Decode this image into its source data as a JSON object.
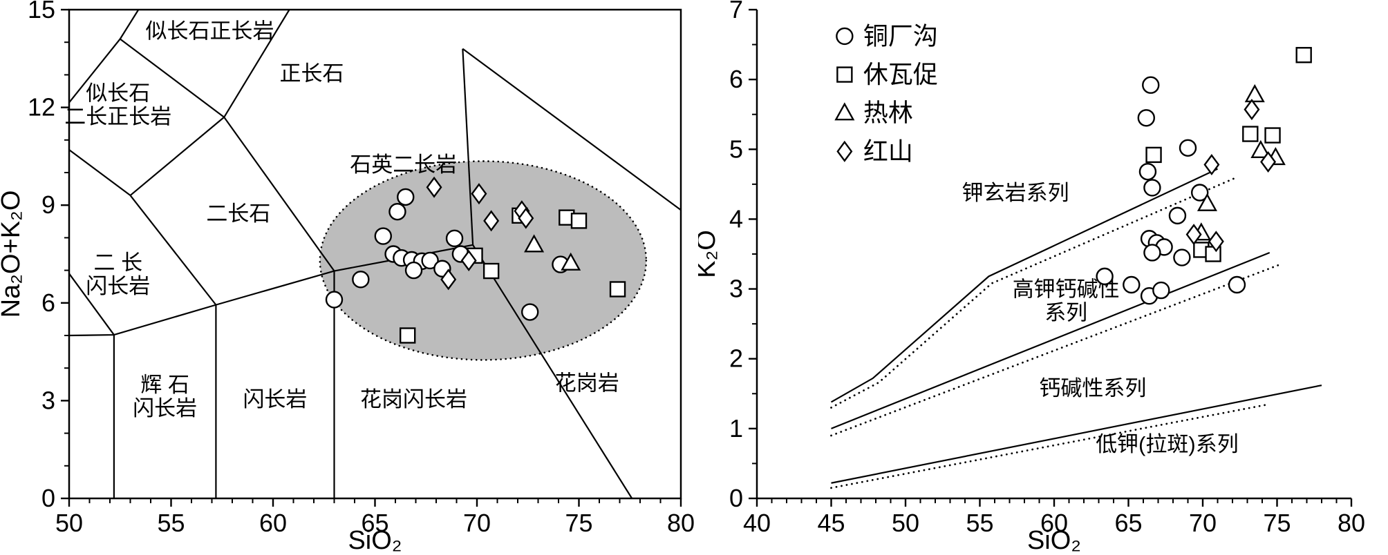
{
  "figure": {
    "background": "#ffffff",
    "ink": "#000000",
    "ellipse_fill": "#bcbcbc"
  },
  "chart_data": [
    {
      "id": "tas",
      "type": "scatter",
      "title": "",
      "xlabel": "SiO₂",
      "ylabel": "Na₂O+K₂O",
      "xlim": [
        50,
        80
      ],
      "ylim": [
        0,
        15
      ],
      "xticks": [
        50,
        55,
        60,
        65,
        70,
        75,
        80
      ],
      "yticks": [
        0,
        3,
        6,
        9,
        12,
        15
      ],
      "xminor": 1,
      "yminor": 1,
      "grid": false,
      "frame": "box",
      "ellipse": {
        "cx": 70.3,
        "cy": 7.3,
        "rx": 8.0,
        "ry": 3.05,
        "fill": "#bcbcbc"
      },
      "boundaries": [
        [
          [
            52.2,
            0
          ],
          [
            52.2,
            5.02
          ]
        ],
        [
          [
            57.2,
            0
          ],
          [
            57.2,
            5.94
          ]
        ],
        [
          [
            63,
            0
          ],
          [
            63,
            6.98
          ]
        ],
        [
          [
            50,
            5.0
          ],
          [
            52.2,
            5.02
          ],
          [
            57.2,
            5.94
          ],
          [
            63,
            6.98
          ],
          [
            69.8,
            7.78
          ]
        ],
        [
          [
            69.8,
            7.78
          ],
          [
            77.6,
            0
          ]
        ],
        [
          [
            69.8,
            7.78
          ],
          [
            69.3,
            13.8
          ]
        ],
        [
          [
            69.3,
            13.8
          ],
          [
            80,
            8.85
          ]
        ],
        [
          [
            63,
            6.98
          ],
          [
            57.6,
            11.7
          ]
        ],
        [
          [
            57.6,
            11.7
          ],
          [
            52.5,
            14.1
          ]
        ],
        [
          [
            50,
            12.15
          ],
          [
            52.5,
            14.1
          ],
          [
            53.4,
            15
          ]
        ],
        [
          [
            57.6,
            11.7
          ],
          [
            60.8,
            15
          ]
        ],
        [
          [
            50,
            10.7
          ],
          [
            53,
            9.3
          ]
        ],
        [
          [
            53,
            9.3
          ],
          [
            57.6,
            11.7
          ]
        ],
        [
          [
            53,
            9.3
          ],
          [
            57.2,
            5.94
          ]
        ],
        [
          [
            50,
            6.9
          ],
          [
            52.2,
            5.02
          ]
        ]
      ],
      "labels": [
        {
          "lines": [
            "似长石正长岩"
          ],
          "x": 56.9,
          "y": 14.35
        },
        {
          "lines": [
            "正长石"
          ],
          "x": 61.9,
          "y": 13.05
        },
        {
          "lines": [
            "似长石",
            "二长正长岩"
          ],
          "x": 52.4,
          "y": 12.45
        },
        {
          "lines": [
            "二长石"
          ],
          "x": 58.3,
          "y": 8.75
        },
        {
          "lines": [
            "石英二长岩"
          ],
          "x": 66.4,
          "y": 10.25
        },
        {
          "lines": [
            "二  长",
            "闪长岩"
          ],
          "x": 52.4,
          "y": 7.25
        },
        {
          "lines": [
            "辉 石",
            "闪长岩"
          ],
          "x": 54.7,
          "y": 3.5
        },
        {
          "lines": [
            "闪长岩"
          ],
          "x": 60.1,
          "y": 3.05
        },
        {
          "lines": [
            "花岗闪长岩"
          ],
          "x": 66.9,
          "y": 3.05
        },
        {
          "lines": [
            "花岗岩"
          ],
          "x": 75.4,
          "y": 3.55
        }
      ],
      "series": [
        {
          "name": "铜厂沟",
          "marker": "circle",
          "points": [
            [
              63.0,
              6.1
            ],
            [
              64.3,
              6.72
            ],
            [
              65.4,
              8.05
            ],
            [
              66.1,
              8.8
            ],
            [
              66.5,
              9.25
            ],
            [
              65.9,
              7.5
            ],
            [
              66.3,
              7.38
            ],
            [
              66.8,
              7.32
            ],
            [
              67.3,
              7.28
            ],
            [
              66.9,
              7.0
            ],
            [
              67.7,
              7.3
            ],
            [
              68.3,
              7.05
            ],
            [
              68.9,
              7.98
            ],
            [
              69.2,
              7.5
            ],
            [
              72.6,
              5.72
            ],
            [
              74.1,
              7.18
            ]
          ]
        },
        {
          "name": "休瓦促",
          "marker": "square",
          "points": [
            [
              66.6,
              5.0
            ],
            [
              69.9,
              7.45
            ],
            [
              70.7,
              6.98
            ],
            [
              72.1,
              8.68
            ],
            [
              74.4,
              8.62
            ],
            [
              75.0,
              8.52
            ],
            [
              76.9,
              6.42
            ]
          ]
        },
        {
          "name": "热林",
          "marker": "triangle",
          "points": [
            [
              72.8,
              7.78
            ],
            [
              74.6,
              7.22
            ]
          ]
        },
        {
          "name": "红山",
          "marker": "diamond",
          "points": [
            [
              67.9,
              9.55
            ],
            [
              70.1,
              9.35
            ],
            [
              70.7,
              8.52
            ],
            [
              68.6,
              6.72
            ],
            [
              69.6,
              7.3
            ],
            [
              72.2,
              8.82
            ],
            [
              72.4,
              8.6
            ]
          ]
        }
      ]
    },
    {
      "id": "k2o",
      "type": "scatter",
      "title": "",
      "xlabel": "SiO₂",
      "ylabel": "K₂O",
      "xlim": [
        40,
        80
      ],
      "ylim": [
        0,
        7
      ],
      "xticks": [
        40,
        45,
        50,
        55,
        60,
        65,
        70,
        75,
        80
      ],
      "yticks": [
        0,
        1,
        2,
        3,
        4,
        5,
        6,
        7
      ],
      "xminor": 1,
      "yminor": 0.5,
      "grid": false,
      "frame": "axes",
      "lines": [
        {
          "style": "solid",
          "pts": [
            [
              45,
              1.38
            ],
            [
              47.8,
              1.72
            ],
            [
              55.6,
              3.18
            ],
            [
              71,
              4.72
            ]
          ]
        },
        {
          "style": "dashed",
          "pts": [
            [
              45,
              1.3
            ],
            [
              48.2,
              1.66
            ],
            [
              55.8,
              3.08
            ],
            [
              72.3,
              4.6
            ]
          ]
        },
        {
          "style": "solid",
          "pts": [
            [
              45,
              1.0
            ],
            [
              74.5,
              3.52
            ]
          ]
        },
        {
          "style": "dashed",
          "pts": [
            [
              45,
              0.9
            ],
            [
              75.2,
              3.35
            ]
          ]
        },
        {
          "style": "solid",
          "pts": [
            [
              45,
              0.22
            ],
            [
              78,
              1.62
            ]
          ]
        },
        {
          "style": "dashed",
          "pts": [
            [
              45,
              0.15
            ],
            [
              74.5,
              1.35
            ]
          ]
        }
      ],
      "labels": [
        {
          "lines": [
            "钾玄岩系列"
          ],
          "x": 57.4,
          "y": 4.38
        },
        {
          "lines": [
            "高钾钙碱性",
            "系列"
          ],
          "x": 60.8,
          "y": 3.0
        },
        {
          "lines": [
            "钙碱性系列"
          ],
          "x": 62.6,
          "y": 1.58
        },
        {
          "lines": [
            "低钾(拉斑)系列"
          ],
          "x": 67.6,
          "y": 0.78
        }
      ],
      "legend": {
        "x": 45.9,
        "y": 6.62,
        "row": 0.55,
        "items": [
          {
            "marker": "circle",
            "label": "铜厂沟"
          },
          {
            "marker": "square",
            "label": "休瓦促"
          },
          {
            "marker": "triangle",
            "label": "热林"
          },
          {
            "marker": "diamond",
            "label": "红山"
          }
        ]
      },
      "series": [
        {
          "name": "铜厂沟",
          "marker": "circle",
          "points": [
            [
              66.5,
              5.92
            ],
            [
              66.2,
              5.45
            ],
            [
              69.0,
              5.02
            ],
            [
              66.3,
              4.68
            ],
            [
              66.6,
              4.45
            ],
            [
              69.8,
              4.38
            ],
            [
              68.3,
              4.05
            ],
            [
              66.4,
              3.72
            ],
            [
              66.9,
              3.66
            ],
            [
              67.4,
              3.6
            ],
            [
              66.6,
              3.52
            ],
            [
              68.6,
              3.45
            ],
            [
              63.4,
              3.18
            ],
            [
              65.2,
              3.06
            ],
            [
              66.4,
              2.9
            ],
            [
              67.2,
              2.98
            ],
            [
              72.3,
              3.06
            ]
          ]
        },
        {
          "name": "休瓦促",
          "marker": "square",
          "points": [
            [
              76.8,
              6.35
            ],
            [
              73.2,
              5.22
            ],
            [
              74.7,
              5.2
            ],
            [
              66.7,
              4.92
            ],
            [
              69.9,
              3.56
            ],
            [
              70.7,
              3.5
            ]
          ]
        },
        {
          "name": "热林",
          "marker": "triangle",
          "points": [
            [
              73.5,
              5.78
            ],
            [
              73.9,
              4.98
            ],
            [
              74.9,
              4.88
            ],
            [
              70.3,
              4.22
            ],
            [
              69.9,
              3.8
            ]
          ]
        },
        {
          "name": "红山",
          "marker": "diamond",
          "points": [
            [
              73.3,
              5.57
            ],
            [
              70.6,
              4.78
            ],
            [
              74.4,
              4.82
            ],
            [
              69.4,
              3.78
            ],
            [
              70.9,
              3.68
            ]
          ]
        }
      ]
    }
  ]
}
